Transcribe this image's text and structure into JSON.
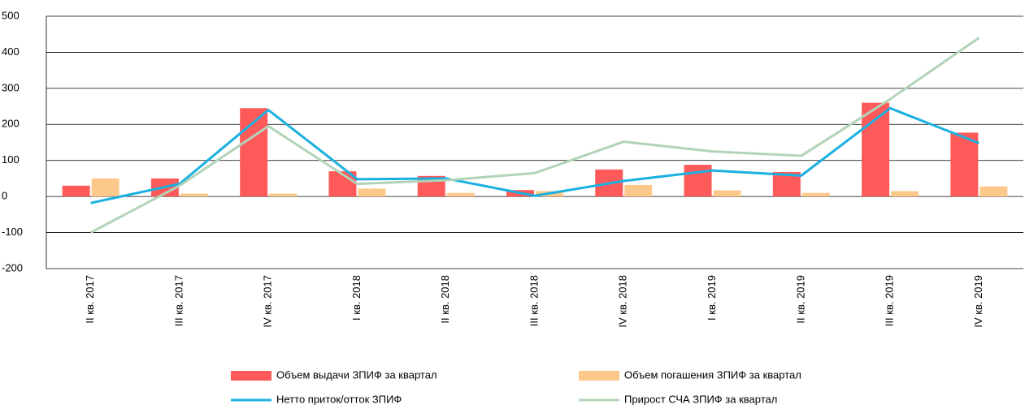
{
  "chart_data": {
    "type": "bar_line",
    "categories": [
      "II кв. 2017",
      "III кв. 2017",
      "IV кв. 2017",
      "I кв. 2018",
      "II кв. 2018",
      "III кв. 2018",
      "IV кв. 2018",
      "I кв. 2019",
      "II кв. 2019",
      "III кв. 2019",
      "IV кв. 2019"
    ],
    "series": [
      {
        "name": "Объем выдачи ЗПИФ за квартал",
        "type": "bar",
        "color": "#ff5a5a",
        "values": [
          30,
          50,
          245,
          70,
          57,
          18,
          75,
          88,
          68,
          260,
          177
        ]
      },
      {
        "name": "Объем погашения ЗПИФ за квартал",
        "type": "bar",
        "color": "#fdc98a",
        "values": [
          50,
          8,
          8,
          22,
          10,
          15,
          32,
          17,
          10,
          15,
          28
        ]
      },
      {
        "name": "Нетто приток/отток ЗПИФ",
        "type": "line",
        "color": "#1ab0e0",
        "values": [
          -18,
          35,
          240,
          48,
          50,
          2,
          43,
          72,
          58,
          245,
          148
        ]
      },
      {
        "name": "Прирост СЧА ЗПИФ за квартал",
        "type": "line",
        "color": "#b3d3b8",
        "values": [
          -100,
          30,
          195,
          35,
          45,
          65,
          152,
          125,
          113,
          270,
          440
        ]
      }
    ],
    "ylim": [
      -200,
      500
    ],
    "yticks": [
      -200,
      -100,
      0,
      100,
      200,
      300,
      400,
      500
    ],
    "grid": true
  }
}
